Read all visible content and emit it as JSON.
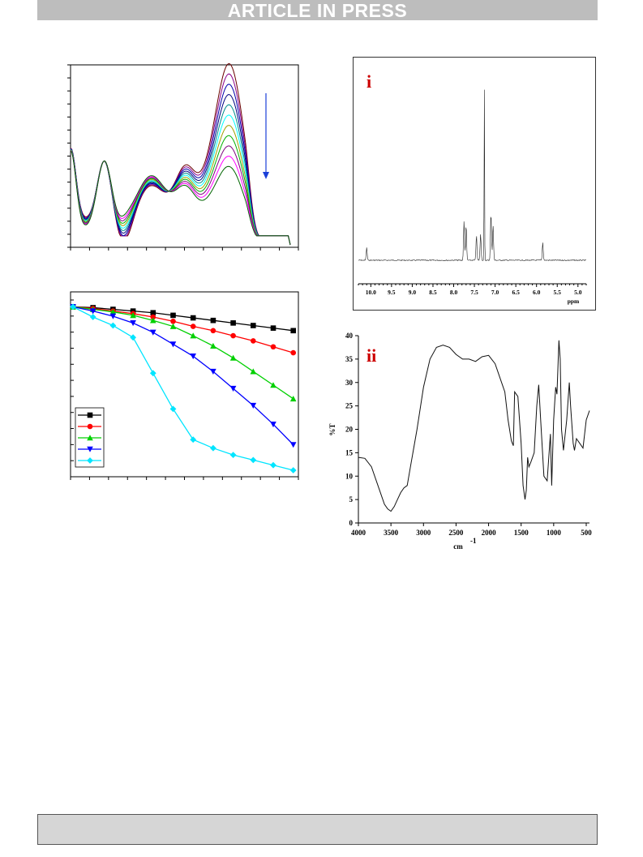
{
  "banner": {
    "text": "ARTICLE IN PRESS"
  },
  "chart_data": [
    {
      "type": "line",
      "panel": "uv-vis-spectra",
      "n_curves": 11,
      "colors": [
        "#6a0000",
        "#8b008b",
        "#0000aa",
        "#000080",
        "#008b8b",
        "#00ffff",
        "#a0a000",
        "#00b000",
        "#800080",
        "#ff00ff",
        "#006400"
      ],
      "arrow": "downward, indicating decreasing absorbance",
      "arrow_color": "#1a3fd8",
      "grid": false
    },
    {
      "type": "line",
      "panel": "decay-series",
      "x": [
        0,
        1,
        2,
        3,
        4,
        5,
        6,
        7,
        8,
        9,
        10,
        11
      ],
      "series": [
        {
          "marker": "square",
          "color": "#000000",
          "values": [
            0.98,
            0.975,
            0.965,
            0.955,
            0.945,
            0.93,
            0.915,
            0.9,
            0.885,
            0.87,
            0.855,
            0.84
          ]
        },
        {
          "marker": "circle",
          "color": "#ff0000",
          "values": [
            0.98,
            0.97,
            0.955,
            0.94,
            0.92,
            0.895,
            0.865,
            0.84,
            0.81,
            0.78,
            0.745,
            0.71
          ]
        },
        {
          "marker": "triangle-up",
          "color": "#00d000",
          "values": [
            0.98,
            0.965,
            0.95,
            0.93,
            0.9,
            0.865,
            0.81,
            0.75,
            0.68,
            0.6,
            0.52,
            0.44
          ]
        },
        {
          "marker": "triangle-down",
          "color": "#0000ff",
          "values": [
            0.98,
            0.955,
            0.925,
            0.885,
            0.83,
            0.76,
            0.69,
            0.6,
            0.5,
            0.4,
            0.29,
            0.17
          ]
        },
        {
          "marker": "diamond",
          "color": "#00e5ff",
          "values": [
            0.98,
            0.92,
            0.87,
            0.8,
            0.59,
            0.38,
            0.2,
            0.15,
            0.11,
            0.08,
            0.05,
            0.02
          ]
        }
      ],
      "legend": "bottom-left",
      "grid": false
    },
    {
      "type": "line",
      "panel": "i",
      "label": "i",
      "x_unit": "ppm",
      "x_ticks": [
        "10.0",
        "9.5",
        "9.0",
        "8.5",
        "8.0",
        "7.5",
        "7.0",
        "6.5",
        "6.0",
        "5.5",
        "5.0"
      ],
      "peaks_ppm": [
        10.1,
        7.75,
        7.7,
        7.45,
        7.35,
        7.26,
        7.1,
        7.05,
        5.85
      ],
      "peak_heights": [
        0.07,
        0.22,
        0.2,
        0.14,
        0.15,
        1.0,
        0.27,
        0.2,
        0.1
      ],
      "grid": false
    },
    {
      "type": "line",
      "panel": "ii",
      "label": "ii",
      "xlabel": "cm",
      "xlabel_superscript": "-1",
      "ylabel": "%T",
      "x_ticks": [
        "4000",
        "3500",
        "3000",
        "2500",
        "2000",
        "1500",
        "1000",
        "500"
      ],
      "y_ticks": [
        "0",
        "5",
        "10",
        "15",
        "20",
        "25",
        "30",
        "35",
        "40"
      ],
      "xlim": [
        4000,
        450
      ],
      "ylim": [
        0,
        40
      ],
      "x": [
        4000,
        3900,
        3800,
        3700,
        3600,
        3550,
        3500,
        3450,
        3400,
        3350,
        3300,
        3250,
        3200,
        3100,
        3000,
        2900,
        2800,
        2700,
        2600,
        2500,
        2400,
        2300,
        2200,
        2100,
        2000,
        1900,
        1800,
        1750,
        1700,
        1650,
        1620,
        1600,
        1550,
        1500,
        1470,
        1440,
        1420,
        1400,
        1380,
        1350,
        1300,
        1260,
        1230,
        1200,
        1150,
        1100,
        1080,
        1050,
        1030,
        1000,
        970,
        950,
        920,
        900,
        880,
        850,
        800,
        760,
        740,
        700,
        680,
        650,
        600,
        550,
        500,
        450
      ],
      "y": [
        14,
        13.8,
        12,
        8,
        4,
        3,
        2.5,
        3.5,
        5,
        6.5,
        7.5,
        8,
        12,
        20,
        29,
        35,
        37.5,
        38,
        37.5,
        36,
        35,
        35,
        34.5,
        35.5,
        35.8,
        34,
        30,
        28,
        22,
        17.5,
        16.5,
        28,
        27,
        17,
        8,
        5,
        7,
        14,
        12,
        13,
        15,
        25,
        29.5,
        22,
        10,
        9,
        13,
        19,
        8,
        22,
        29,
        27.5,
        39,
        35,
        20,
        15.5,
        22,
        30,
        25,
        17,
        15.5,
        18,
        17,
        16,
        22,
        24
      ]
    }
  ]
}
